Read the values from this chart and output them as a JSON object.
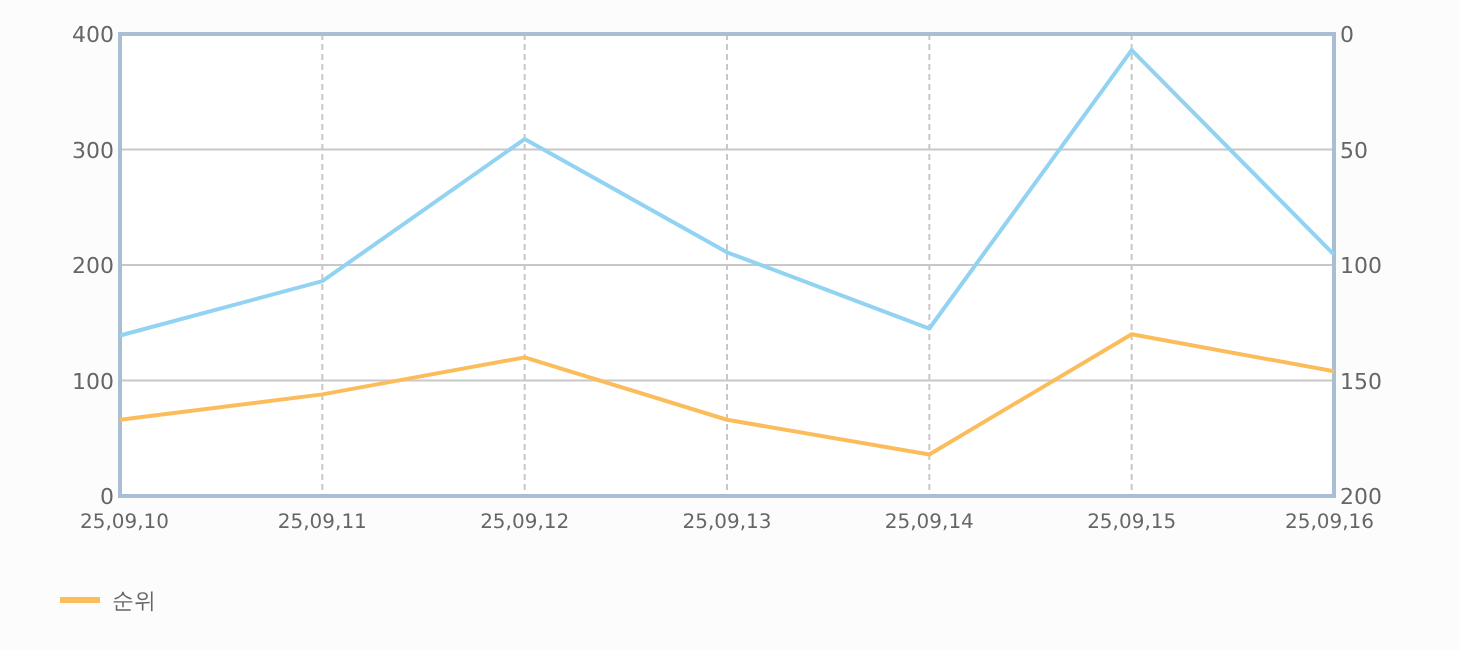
{
  "chart_data": {
    "type": "line",
    "categories": [
      "25,09,10",
      "25,09,11",
      "25,09,12",
      "25,09,13",
      "25,09,14",
      "25,09,15",
      "25,09,16"
    ],
    "series": [
      {
        "color": "#92d2f2",
        "values": [
          139,
          186,
          309,
          211,
          145,
          386,
          209
        ]
      },
      {
        "name": "순위",
        "color": "#fbbd5c",
        "axis": "y2",
        "values": [
          167,
          156,
          140,
          167,
          182,
          130,
          146
        ]
      }
    ],
    "ylim": [
      0,
      400
    ],
    "yticks": [
      0,
      100,
      200,
      300,
      400
    ],
    "y2lim": [
      200,
      0
    ],
    "y2ticks": [
      0,
      50,
      100,
      150,
      200
    ],
    "grid": true,
    "legend": "bottom left",
    "marker": "none",
    "line_style": "solid"
  }
}
